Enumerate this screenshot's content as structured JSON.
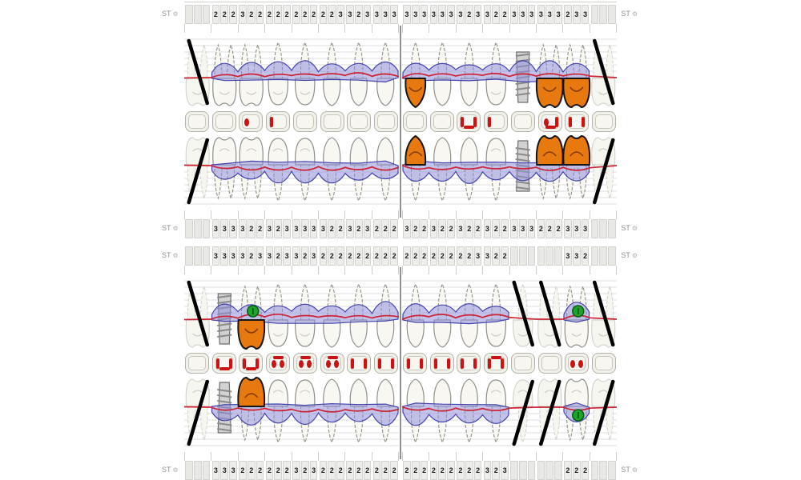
{
  "labels": {
    "st": "ST",
    "gear": "⚙"
  },
  "colors": {
    "band_fill": "#8f8fd8",
    "band_stroke": "#4444ae",
    "red_line": "#cc2333",
    "crown_fill": "#e8790f",
    "crown_stroke": "#161616",
    "marker_fill": "#1ea32c",
    "marker_stroke": "#0c5c12",
    "grid": "#dcdcdc",
    "tooth_fill": "#f8f7f1",
    "tooth_stroke": "#8f8f87",
    "ghost_stroke": "#d4d4cc",
    "ghost_fill": "#f6f6f1",
    "slash": "#000000",
    "occlusal_mark": "#cc1212",
    "implant_fill": "#d2d2d2",
    "implant_stroke": "#6e6e6e",
    "implant_thread": "#8a8a8a"
  },
  "upper_chart": {
    "numbers_top": {
      "left": [
        [
          "",
          "",
          ""
        ],
        [
          "2",
          "2",
          "2"
        ],
        [
          "3",
          "2",
          "2"
        ],
        [
          "2",
          "2",
          "2"
        ],
        [
          "2",
          "2",
          "2"
        ],
        [
          "2",
          "2",
          "3"
        ],
        [
          "3",
          "2",
          "3"
        ],
        [
          "3",
          "3",
          "3"
        ]
      ],
      "right": [
        [
          "3",
          "3",
          "3"
        ],
        [
          "3",
          "3",
          "3"
        ],
        [
          "3",
          "2",
          "3"
        ],
        [
          "3",
          "2",
          "2"
        ],
        [
          "3",
          "3",
          "3"
        ],
        [
          "3",
          "3",
          "3"
        ],
        [
          "2",
          "3",
          "3"
        ],
        [
          "",
          "",
          ""
        ]
      ]
    },
    "numbers_bottom": {
      "left": [
        [
          "",
          "",
          ""
        ],
        [
          "3",
          "3",
          "3"
        ],
        [
          "3",
          "2",
          "2"
        ],
        [
          "3",
          "2",
          "3"
        ],
        [
          "3",
          "3",
          "3"
        ],
        [
          "3",
          "2",
          "2"
        ],
        [
          "3",
          "2",
          "3"
        ],
        [
          "2",
          "2",
          "2"
        ]
      ],
      "right": [
        [
          "3",
          "2",
          "2"
        ],
        [
          "3",
          "2",
          "2"
        ],
        [
          "3",
          "2",
          "2"
        ],
        [
          "3",
          "2",
          "2"
        ],
        [
          "3",
          "3",
          "3"
        ],
        [
          "2",
          "2",
          "2"
        ],
        [
          "3",
          "3",
          "3"
        ],
        [
          "",
          "",
          ""
        ]
      ]
    },
    "teeth_upper": {
      "left": {
        "states": [
          "missing",
          "normal",
          "normal",
          "normal",
          "normal",
          "normal",
          "normal",
          "normal"
        ],
        "markers": []
      },
      "right": {
        "states": [
          "crown",
          "normal",
          "normal",
          "normal",
          "implant",
          "crown",
          "crown",
          "missing"
        ],
        "markers": []
      }
    },
    "teeth_lower": {
      "left": {
        "states": [
          "missing",
          "normal",
          "normal",
          "normal",
          "normal",
          "normal",
          "normal",
          "normal"
        ],
        "markers": []
      },
      "right": {
        "states": [
          "crown",
          "normal",
          "normal",
          "normal",
          "implant",
          "crown",
          "crown",
          "missing"
        ],
        "markers": []
      }
    },
    "occlusal": {
      "left": [
        [],
        [],
        [
          "dl"
        ],
        [
          "vl"
        ],
        [],
        [],
        [],
        []
      ],
      "right": [
        [],
        [],
        [
          "vl",
          "hb",
          "vr"
        ],
        [
          "vl"
        ],
        [],
        [
          "dl",
          "hb",
          "vr"
        ],
        [
          "vl",
          "vr"
        ],
        []
      ]
    }
  },
  "lower_chart": {
    "numbers_top": {
      "left": [
        [
          "",
          "",
          ""
        ],
        [
          "3",
          "3",
          "3"
        ],
        [
          "3",
          "2",
          "3"
        ],
        [
          "3",
          "2",
          "3"
        ],
        [
          "3",
          "2",
          "3"
        ],
        [
          "2",
          "2",
          "2"
        ],
        [
          "2",
          "2",
          "2"
        ],
        [
          "2",
          "2",
          "2"
        ]
      ],
      "right": [
        [
          "2",
          "2",
          "2"
        ],
        [
          "2",
          "2",
          "2"
        ],
        [
          "2",
          "2",
          "3"
        ],
        [
          "3",
          "2",
          "2"
        ],
        [
          "",
          "",
          ""
        ],
        [
          "",
          "",
          ""
        ],
        [
          "3",
          "3",
          "2"
        ],
        [
          "",
          "",
          ""
        ]
      ]
    },
    "numbers_bottom": {
      "left": [
        [
          "",
          "",
          ""
        ],
        [
          "3",
          "3",
          "3"
        ],
        [
          "2",
          "2",
          "2"
        ],
        [
          "2",
          "2",
          "2"
        ],
        [
          "3",
          "2",
          "3"
        ],
        [
          "2",
          "2",
          "2"
        ],
        [
          "2",
          "2",
          "2"
        ],
        [
          "2",
          "2",
          "2"
        ]
      ],
      "right": [
        [
          "2",
          "2",
          "2"
        ],
        [
          "2",
          "2",
          "2"
        ],
        [
          "2",
          "2",
          "2"
        ],
        [
          "3",
          "2",
          "3"
        ],
        [
          "",
          "",
          ""
        ],
        [
          "",
          "",
          ""
        ],
        [
          "2",
          "2",
          "2"
        ],
        [
          "",
          "",
          ""
        ]
      ]
    },
    "teeth_upper": {
      "left": {
        "states": [
          "missing",
          "implant",
          "crown",
          "normal",
          "normal",
          "normal",
          "normal",
          "normal"
        ],
        "markers": [
          2
        ]
      },
      "right": {
        "states": [
          "normal",
          "normal",
          "normal",
          "normal",
          "missing",
          "missing",
          "normal",
          "missing"
        ],
        "markers": [
          6
        ]
      }
    },
    "teeth_lower": {
      "left": {
        "states": [
          "missing",
          "implant",
          "crown",
          "normal",
          "normal",
          "normal",
          "normal",
          "normal"
        ],
        "markers": []
      },
      "right": {
        "states": [
          "normal",
          "normal",
          "normal",
          "normal",
          "missing",
          "missing",
          "normal",
          "missing"
        ],
        "markers": [
          6
        ]
      }
    },
    "occlusal": {
      "left": [
        [],
        [
          "vl",
          "hb",
          "vr"
        ],
        [
          "vl",
          "hb",
          "vr"
        ],
        [
          "ht",
          "dl",
          "dr"
        ],
        [
          "ht",
          "dl",
          "dr"
        ],
        [
          "ht",
          "dl",
          "dr"
        ],
        [
          "vl",
          "vr"
        ],
        [
          "vl",
          "vr"
        ]
      ],
      "right": [
        [
          "vl",
          "vr"
        ],
        [
          "vl",
          "vr"
        ],
        [
          "vl",
          "vr"
        ],
        [
          "vl",
          "ht",
          "vr"
        ],
        [],
        [],
        [
          "dl",
          "dr"
        ],
        []
      ]
    }
  }
}
